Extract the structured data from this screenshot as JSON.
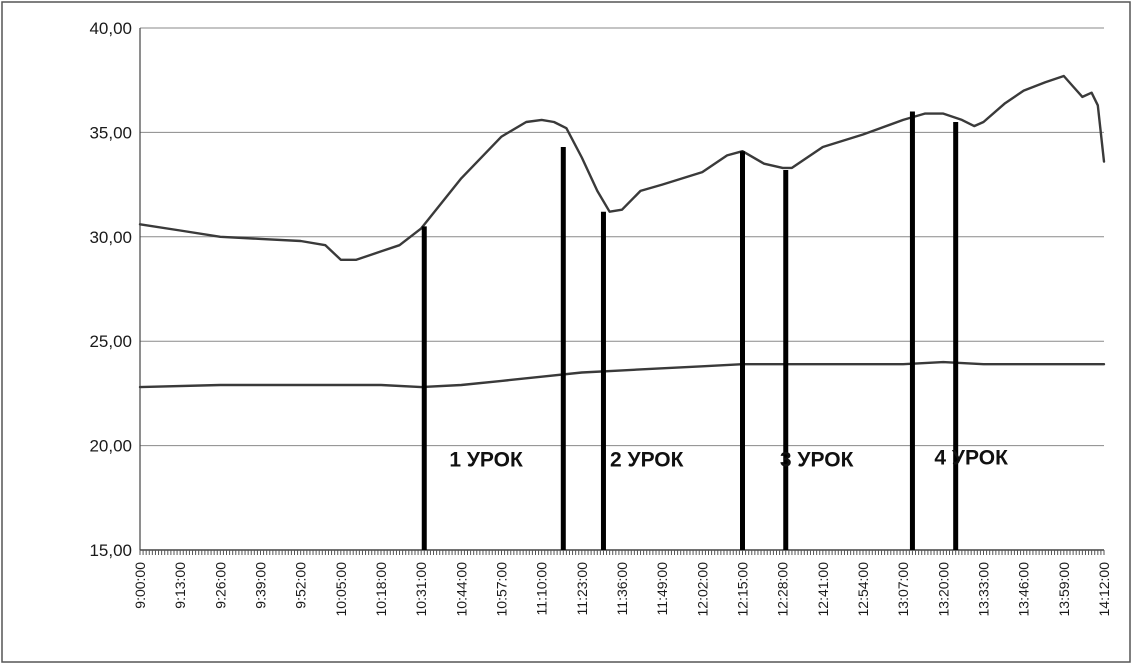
{
  "chart_data": {
    "type": "line",
    "title": "",
    "xlabel": "",
    "ylabel": "",
    "ylim": [
      15,
      40
    ],
    "grid": true,
    "y_tick_labels": [
      "15,00",
      "20,00",
      "25,00",
      "30,00",
      "35,00",
      "40,00"
    ],
    "y_tick_values": [
      15,
      20,
      25,
      30,
      35,
      40
    ],
    "x_tick_labels": [
      "9:00:00",
      "9:13:00",
      "9:26:00",
      "9:39:00",
      "9:52:00",
      "10:05:00",
      "10:18:00",
      "10:31:00",
      "10:44:00",
      "10:57:00",
      "11:10:00",
      "11:23:00",
      "11:36:00",
      "11:49:00",
      "12:02:00",
      "12:15:00",
      "12:28:00",
      "12:41:00",
      "12:54:00",
      "13:07:00",
      "13:20:00",
      "13:33:00",
      "13:46:00",
      "13:59:00",
      "14:12:00"
    ],
    "series": [
      {
        "x": [
          "9:00:00",
          "9:13:00",
          "9:26:00",
          "9:39:00",
          "9:52:00",
          "10:00:00",
          "10:05:00",
          "10:10:00",
          "10:18:00",
          "10:24:00",
          "10:31:00",
          "10:44:00",
          "10:57:00",
          "11:05:00",
          "11:10:00",
          "11:14:00",
          "11:18:00",
          "11:23:00",
          "11:28:00",
          "11:32:00",
          "11:36:00",
          "11:42:00",
          "11:49:00",
          "12:02:00",
          "12:10:00",
          "12:15:00",
          "12:22:00",
          "12:28:00",
          "12:31:00",
          "12:41:00",
          "12:54:00",
          "13:07:00",
          "13:14:00",
          "13:20:00",
          "13:26:00",
          "13:30:00",
          "13:33:00",
          "13:40:00",
          "13:46:00",
          "13:53:00",
          "13:59:00",
          "14:02:00",
          "14:05:00",
          "14:08:00",
          "14:10:00",
          "14:12:00"
        ],
        "values": [
          30.6,
          30.3,
          30.0,
          29.9,
          29.8,
          29.6,
          28.9,
          28.9,
          29.3,
          29.6,
          30.4,
          32.8,
          34.8,
          35.5,
          35.6,
          35.5,
          35.2,
          33.8,
          32.2,
          31.2,
          31.3,
          32.2,
          32.5,
          33.1,
          33.9,
          34.1,
          33.5,
          33.3,
          33.3,
          34.3,
          34.9,
          35.6,
          35.9,
          35.9,
          35.6,
          35.3,
          35.5,
          36.4,
          37.0,
          37.4,
          37.7,
          37.2,
          36.7,
          36.9,
          36.3,
          33.6
        ]
      },
      {
        "x": [
          "9:00:00",
          "9:26:00",
          "9:52:00",
          "10:18:00",
          "10:31:00",
          "10:44:00",
          "10:57:00",
          "11:10:00",
          "11:23:00",
          "11:36:00",
          "11:49:00",
          "12:02:00",
          "12:15:00",
          "12:28:00",
          "12:41:00",
          "12:54:00",
          "13:07:00",
          "13:20:00",
          "13:33:00",
          "13:46:00",
          "13:59:00",
          "14:12:00"
        ],
        "values": [
          22.8,
          22.9,
          22.9,
          22.9,
          22.8,
          22.9,
          23.1,
          23.3,
          23.5,
          23.6,
          23.7,
          23.8,
          23.9,
          23.9,
          23.9,
          23.9,
          23.9,
          24.0,
          23.9,
          23.9,
          23.9,
          23.9
        ]
      }
    ],
    "markers": [
      {
        "x": "10:32:00",
        "y": 30.5
      },
      {
        "x": "11:17:00",
        "y": 34.3
      },
      {
        "x": "11:30:00",
        "y": 31.2
      },
      {
        "x": "12:15:00",
        "y": 34.1
      },
      {
        "x": "12:29:00",
        "y": 33.2
      },
      {
        "x": "13:10:00",
        "y": 36.0
      },
      {
        "x": "13:24:00",
        "y": 35.5
      }
    ],
    "annotations": [
      {
        "text": "1 УРОК",
        "x": "10:44:00",
        "y": 19.0
      },
      {
        "text": "2 УРОК",
        "x": "11:36:00",
        "y": 19.0
      },
      {
        "text": "3 УРОК",
        "x": "12:31:00",
        "y": 19.0
      },
      {
        "text": "4 УРОК",
        "x": "13:21:00",
        "y": 19.1
      }
    ]
  }
}
